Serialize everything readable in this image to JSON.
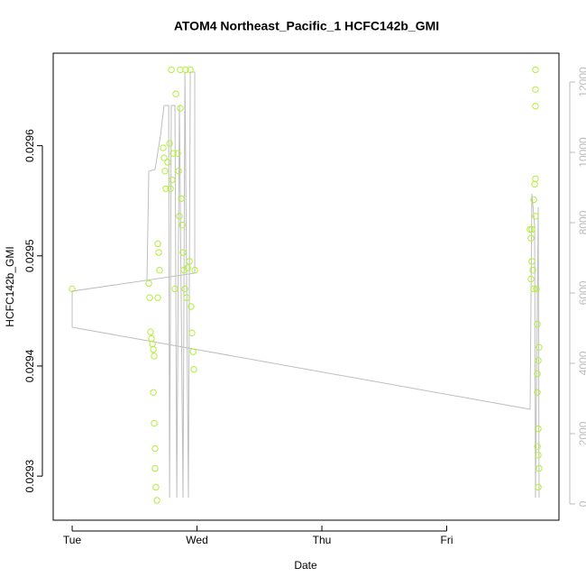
{
  "chart_data": {
    "type": "scatter",
    "title": "ATOM4 Northeast_Pacific_1 HCFC142b_GMI",
    "xlabel": "Date",
    "ylabel": "HCFC142b_GMI",
    "color": "#b3ee3a",
    "x": [
      0,
      0.614,
      0.621,
      0.628,
      0.635,
      0.643,
      0.65,
      0.657,
      0.65,
      0.657,
      0.664,
      0.664,
      0.671,
      0.679,
      0.686,
      0.693,
      0.7,
      0.686,
      0.729,
      0.736,
      0.744,
      0.751,
      0.765,
      0.78,
      0.794,
      0.801,
      0.809,
      0.83,
      0.845,
      0.852,
      0.866,
      0.874,
      0.881,
      0.888,
      0.895,
      0.903,
      0.91,
      0.917,
      0.924,
      0.939,
      0.946,
      0.953,
      0.96,
      0.968,
      0.975,
      0.982,
      0.866,
      0.859,
      0.823,
      0.787,
      3.711,
      3.711,
      3.711,
      3.711,
      3.704,
      3.697,
      3.682,
      3.675,
      3.682,
      3.675,
      3.69,
      3.697,
      3.718,
      3.726,
      3.74,
      3.733,
      3.726,
      3.726,
      3.733,
      3.726,
      3.733,
      3.74,
      3.733,
      3.668,
      3.711
    ],
    "values": [
      0.02947,
      0.029475,
      0.029462,
      0.029431,
      0.029425,
      0.02942,
      0.029415,
      0.029409,
      0.029376,
      0.029348,
      0.029325,
      0.029307,
      0.02929,
      0.029278,
      0.029511,
      0.029503,
      0.029487,
      0.029462,
      0.029598,
      0.029589,
      0.029577,
      0.029561,
      0.029585,
      0.029602,
      0.029669,
      0.029569,
      0.029593,
      0.029647,
      0.029593,
      0.029577,
      0.029669,
      0.029552,
      0.029528,
      0.029503,
      0.029487,
      0.02947,
      0.029669,
      0.029462,
      0.029489,
      0.029495,
      0.029669,
      0.029454,
      0.02943,
      0.029413,
      0.029397,
      0.029487,
      0.029634,
      0.029536,
      0.02947,
      0.029561,
      0.029669,
      0.029651,
      0.029636,
      0.02957,
      0.029565,
      0.029551,
      0.029524,
      0.029516,
      0.029495,
      0.029479,
      0.029487,
      0.02947,
      0.02947,
      0.029438,
      0.029417,
      0.029405,
      0.029393,
      0.029376,
      0.029343,
      0.029327,
      0.029319,
      0.029307,
      0.02929,
      0.029524,
      0.029536
    ],
    "line": {
      "axis": "y2",
      "color": "#bebebe",
      "x": [
        0.599,
        0.614,
        0.664,
        0.708,
        0.736,
        0.773,
        0.78,
        0.794,
        0.823,
        0.838,
        0.859,
        0.888,
        0.903,
        0.931,
        0.946,
        0.982,
        0.982,
        0,
        0,
        3.668,
        3.682,
        3.704,
        3.711,
        3.733,
        3.74
      ],
      "values": [
        6385,
        9462,
        9513,
        10487,
        11333,
        11333,
        179,
        11333,
        11333,
        179,
        11333,
        179,
        12282,
        179,
        12282,
        12282,
        6564,
        6051,
        5026,
        2692,
        8821,
        7923,
        179,
        8436,
        179
      ]
    },
    "xlim": [
      -0.152,
      3.899
    ],
    "xticks": [
      {
        "value": 0,
        "label": "Tue"
      },
      {
        "value": 1,
        "label": "Wed"
      },
      {
        "value": 2,
        "label": "Thu"
      },
      {
        "value": 3,
        "label": "Fri"
      }
    ],
    "ylim": [
      0.02926,
      0.029684
    ],
    "yticks": [
      0.0293,
      0.0294,
      0.0295,
      0.0296
    ],
    "y2lim": [
      -462,
      12820
    ],
    "y2ticks": [
      0,
      2000,
      4000,
      6000,
      8000,
      10000,
      12000
    ]
  }
}
